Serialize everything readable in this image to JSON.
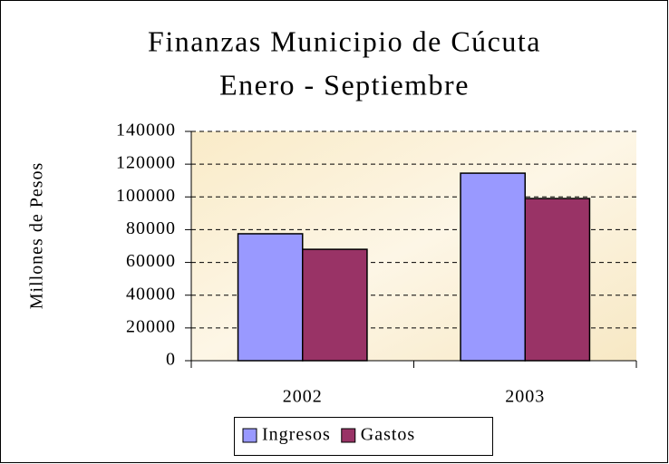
{
  "chart_data": {
    "type": "bar",
    "title": "Finanzas Municipio de Cúcuta",
    "subtitle": "Enero - Septiembre",
    "y_label": "Millones de Pesos",
    "categories": [
      "2002",
      "2003"
    ],
    "series": [
      {
        "name": "Ingresos",
        "color": "#9999ff",
        "values": [
          77500,
          114500
        ]
      },
      {
        "name": "Gastos",
        "color": "#993366",
        "values": [
          68000,
          99000
        ]
      }
    ],
    "ylim": [
      0,
      140000
    ],
    "yticks": [
      0,
      20000,
      40000,
      60000,
      80000,
      100000,
      120000,
      140000
    ],
    "grid": true,
    "legend": "bottom"
  }
}
